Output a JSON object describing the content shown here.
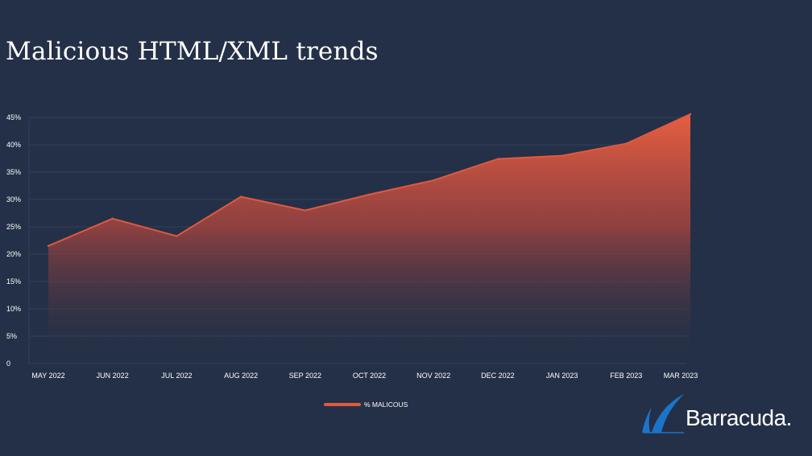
{
  "slide": {
    "title": "Malicious HTML/XML trends",
    "logo_text": "Barracuda."
  },
  "colors": {
    "background": "#243047",
    "series": "#e0593f",
    "grid": "#34405a",
    "logo_blue": "#1b74c9"
  },
  "chart_data": {
    "type": "area",
    "title": "",
    "xlabel": "",
    "ylabel": "",
    "categories": [
      "MAY 2022",
      "JUN 2022",
      "JUL 2022",
      "AUG 2022",
      "SEP 2022",
      "OCT 2022",
      "NOV 2022",
      "DEC 2022",
      "JAN 2023",
      "FEB 2023",
      "MAR 2023"
    ],
    "series": [
      {
        "name": "% MALICOUS",
        "values": [
          21.5,
          26.5,
          23.3,
          30.5,
          28.0,
          30.9,
          33.5,
          37.4,
          38.0,
          40.2,
          45.6
        ],
        "fill": "gradient"
      }
    ],
    "ylim": [
      0,
      45
    ],
    "y_ticks": [
      {
        "value": 0,
        "label": "0"
      },
      {
        "value": 5,
        "label": "5%"
      },
      {
        "value": 10,
        "label": "10%"
      },
      {
        "value": 15,
        "label": "15%"
      },
      {
        "value": 20,
        "label": "20%"
      },
      {
        "value": 25,
        "label": "25%"
      },
      {
        "value": 30,
        "label": "30%"
      },
      {
        "value": 35,
        "label": "35%"
      },
      {
        "value": 40,
        "label": "40%"
      },
      {
        "value": 45,
        "label": "45%"
      }
    ],
    "grid": true,
    "legend": "bottom"
  }
}
